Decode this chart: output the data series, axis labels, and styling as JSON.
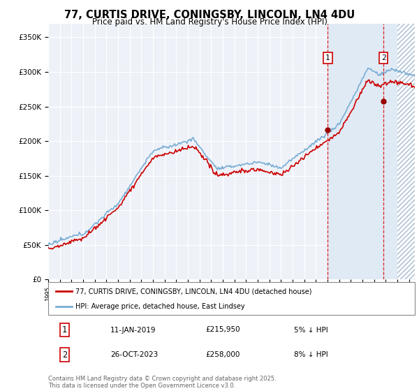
{
  "title": "77, CURTIS DRIVE, CONINGSBY, LINCOLN, LN4 4DU",
  "subtitle": "Price paid vs. HM Land Registry's House Price Index (HPI)",
  "ylabel_ticks": [
    "£0",
    "£50K",
    "£100K",
    "£150K",
    "£200K",
    "£250K",
    "£300K",
    "£350K"
  ],
  "ytick_values": [
    0,
    50000,
    100000,
    150000,
    200000,
    250000,
    300000,
    350000
  ],
  "ylim": [
    0,
    370000
  ],
  "xlim_start": 1995.0,
  "xlim_end": 2026.5,
  "hpi_color": "#7aadd4",
  "price_color": "#cc0000",
  "marker1_x": 2019.03,
  "marker2_x": 2023.82,
  "marker1_price": 215950,
  "marker2_price": 258000,
  "marker1_label": "11-JAN-2019",
  "marker2_label": "26-OCT-2023",
  "marker1_pct": "5% ↓ HPI",
  "marker2_pct": "8% ↓ HPI",
  "legend_price_label": "77, CURTIS DRIVE, CONINGSBY, LINCOLN, LN4 4DU (detached house)",
  "legend_hpi_label": "HPI: Average price, detached house, East Lindsey",
  "footnote": "Contains HM Land Registry data © Crown copyright and database right 2025.\nThis data is licensed under the Open Government Licence v3.0.",
  "background_color": "#ffffff",
  "plot_bg_color": "#eef2f8",
  "highlight_color": "#dce8f5",
  "hatch_color": "#c8d4e0",
  "grid_color": "#ffffff"
}
